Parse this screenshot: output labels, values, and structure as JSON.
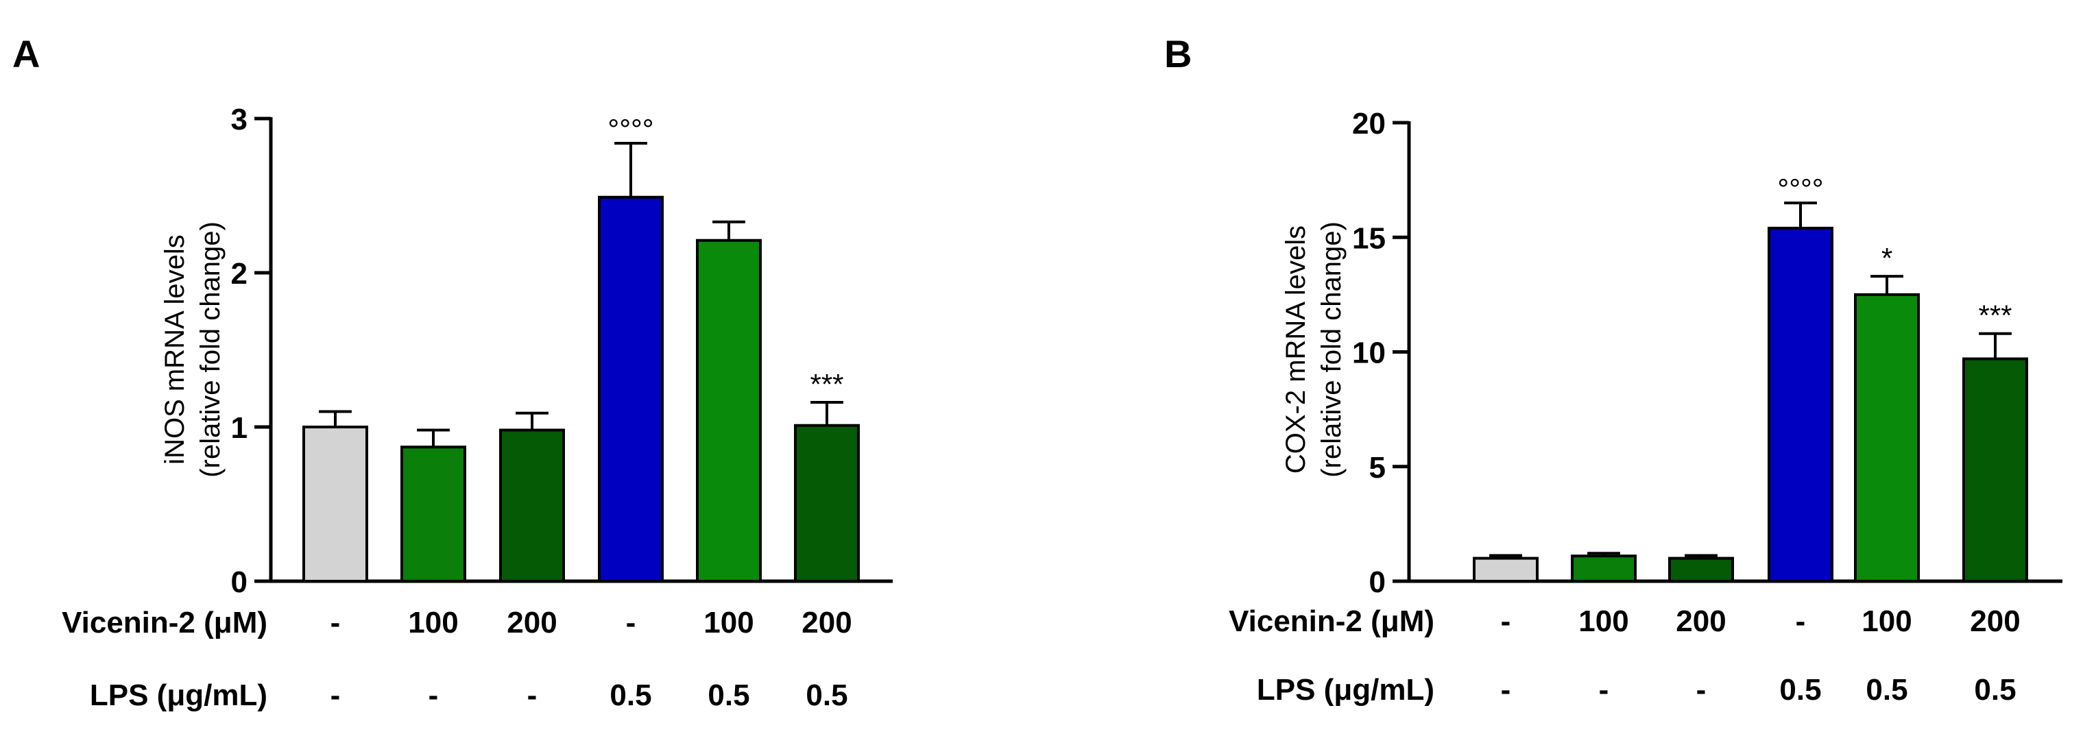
{
  "figure": {
    "panels": [
      "A",
      "B"
    ],
    "row_labels": {
      "vicenin": "Vicenin-2 (μM)",
      "lps": "LPS (μg/mL)"
    }
  },
  "chart_data": [
    {
      "type": "bar",
      "panel": "A",
      "ylabel_line1": "iNOS mRNA levels",
      "ylabel_line2": "(relative fold change)",
      "ylim": [
        0,
        3
      ],
      "yticks": [
        0,
        1,
        2,
        3
      ],
      "conditions": {
        "vicenin": [
          "-",
          "100",
          "200",
          "-",
          "100",
          "200"
        ],
        "lps": [
          "-",
          "-",
          "-",
          "0.5",
          "0.5",
          "0.5"
        ]
      },
      "values": [
        1.0,
        0.87,
        0.98,
        2.49,
        2.21,
        1.01
      ],
      "errors": [
        0.1,
        0.11,
        0.11,
        0.35,
        0.12,
        0.15
      ],
      "colors": [
        "#d3d3d3",
        "#0a7f0a",
        "#055a05",
        "#0000c0",
        "#0a8a0a",
        "#055a05"
      ],
      "significance": [
        "",
        "",
        "",
        "°°°°",
        "",
        "***"
      ]
    },
    {
      "type": "bar",
      "panel": "B",
      "ylabel_line1": "COX-2 mRNA levels",
      "ylabel_line2": "(relative fold change)",
      "ylim": [
        0,
        20
      ],
      "yticks": [
        0,
        5,
        10,
        15,
        20
      ],
      "conditions": {
        "vicenin": [
          "-",
          "100",
          "200",
          "-",
          "100",
          "200"
        ],
        "lps": [
          "-",
          "-",
          "-",
          "0.5",
          "0.5",
          "0.5"
        ]
      },
      "values": [
        1.0,
        1.1,
        1.0,
        15.4,
        12.5,
        9.7
      ],
      "errors": [
        0.12,
        0.12,
        0.12,
        1.1,
        0.8,
        1.1
      ],
      "colors": [
        "#d3d3d3",
        "#0a7f0a",
        "#055a05",
        "#0000c0",
        "#0a8a0a",
        "#055a05"
      ],
      "significance": [
        "",
        "",
        "",
        "°°°°",
        "*",
        "***"
      ]
    }
  ]
}
